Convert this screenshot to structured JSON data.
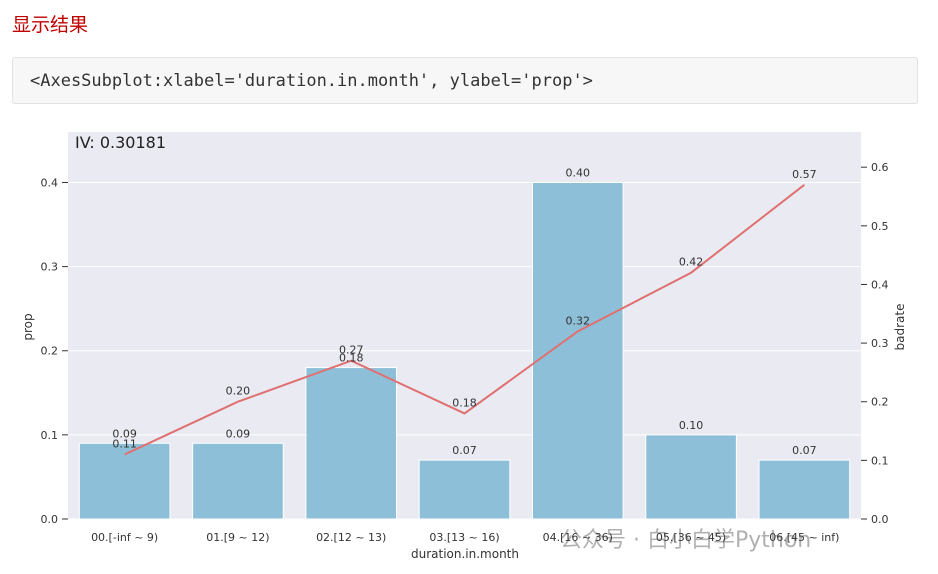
{
  "heading": "显示结果",
  "code_output": "<AxesSubplot:xlabel='duration.in.month', ylabel='prop'>",
  "watermark": "公众号 · 白小白学Python",
  "colors": {
    "bar": "#8dc0d8",
    "line": "#e07070",
    "plot_bg": "#eaeaf2",
    "heading": "#c00000"
  },
  "chart_data": {
    "type": "bar",
    "annotation": "IV: 0.30181",
    "xlabel": "duration.in.month",
    "ylabel": "prop",
    "y2label": "badrate",
    "categories": [
      "00.[-inf ~ 9)",
      "01.[9 ~ 12)",
      "02.[12 ~ 13)",
      "03.[13 ~ 16)",
      "04.[16 ~ 36)",
      "05.[36 ~ 45)",
      "06.[45 ~ inf)"
    ],
    "series": [
      {
        "name": "prop",
        "type": "bar",
        "axis": "left",
        "values": [
          0.09,
          0.09,
          0.18,
          0.07,
          0.4,
          0.1,
          0.07
        ],
        "labels": [
          "0.09",
          "0.09",
          "0.18",
          "0.07",
          "0.40",
          "0.10",
          "0.07"
        ]
      },
      {
        "name": "badrate",
        "type": "line",
        "axis": "right",
        "values": [
          0.11,
          0.2,
          0.27,
          0.18,
          0.32,
          0.42,
          0.57
        ],
        "labels": [
          "0.11",
          "0.20",
          "0.27",
          "0.18",
          "0.32",
          "0.42",
          "0.57"
        ]
      }
    ],
    "ylim": [
      0,
      0.46
    ],
    "yticks": [
      "0.0",
      "0.1",
      "0.2",
      "0.3",
      "0.4"
    ],
    "y2lim": [
      0,
      0.66
    ],
    "y2ticks": [
      "0.0",
      "0.1",
      "0.2",
      "0.3",
      "0.4",
      "0.5",
      "0.6"
    ],
    "grid": true
  }
}
